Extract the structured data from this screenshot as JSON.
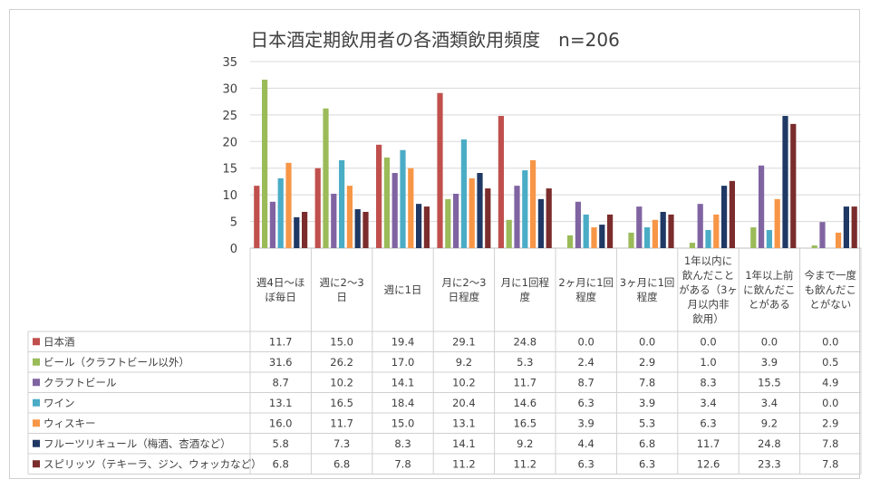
{
  "chart_data": {
    "type": "bar",
    "title": "日本酒定期飲用者の各酒類飲用頻度　n=206",
    "ylim": [
      0,
      35
    ],
    "yticks": [
      0,
      5,
      10,
      15,
      20,
      25,
      30,
      35
    ],
    "grid": true,
    "legend": "data-table",
    "categories": [
      [
        "週4日～ほ",
        "ぼ毎日"
      ],
      [
        "週に2～3",
        "日"
      ],
      [
        "週に1日"
      ],
      [
        "月に2～3",
        "日程度"
      ],
      [
        "月に1回程",
        "度"
      ],
      [
        "2ヶ月に1回",
        "程度"
      ],
      [
        "3ヶ月に1回",
        "程度"
      ],
      [
        "1年以内に",
        "飲んだこと",
        "がある（3ヶ",
        "月以内非",
        "飲用）"
      ],
      [
        "1年以上前",
        "に飲んだこ",
        "とがある"
      ],
      [
        "今まで一度",
        "も飲んだこ",
        "とがない"
      ]
    ],
    "series": [
      {
        "name": "日本酒",
        "color": "#c0504d",
        "values": [
          11.7,
          15.0,
          19.4,
          29.1,
          24.8,
          0.0,
          0.0,
          0.0,
          0.0,
          0.0
        ]
      },
      {
        "name": "ビール（クラフトビール以外）",
        "color": "#9bbb59",
        "values": [
          31.6,
          26.2,
          17.0,
          9.2,
          5.3,
          2.4,
          2.9,
          1.0,
          3.9,
          0.5
        ]
      },
      {
        "name": "クラフトビール",
        "color": "#8064a2",
        "values": [
          8.7,
          10.2,
          14.1,
          10.2,
          11.7,
          8.7,
          7.8,
          8.3,
          15.5,
          4.9
        ]
      },
      {
        "name": "ワイン",
        "color": "#4bacc6",
        "values": [
          13.1,
          16.5,
          18.4,
          20.4,
          14.6,
          6.3,
          3.9,
          3.4,
          3.4,
          0.0
        ]
      },
      {
        "name": "ウィスキー",
        "color": "#f79646",
        "values": [
          16.0,
          11.7,
          15.0,
          13.1,
          16.5,
          3.9,
          5.3,
          6.3,
          9.2,
          2.9
        ]
      },
      {
        "name": "フルーツリキュール（梅酒、杏酒など）",
        "color": "#1f3864",
        "values": [
          5.8,
          7.3,
          8.3,
          14.1,
          9.2,
          4.4,
          6.8,
          11.7,
          24.8,
          7.8
        ]
      },
      {
        "name": "スピリッツ（テキーラ、ジン、ウォッカなど）",
        "color": "#7b2c2c",
        "values": [
          6.8,
          6.8,
          7.8,
          11.2,
          11.2,
          6.3,
          6.3,
          12.6,
          23.3,
          7.8
        ]
      }
    ]
  }
}
